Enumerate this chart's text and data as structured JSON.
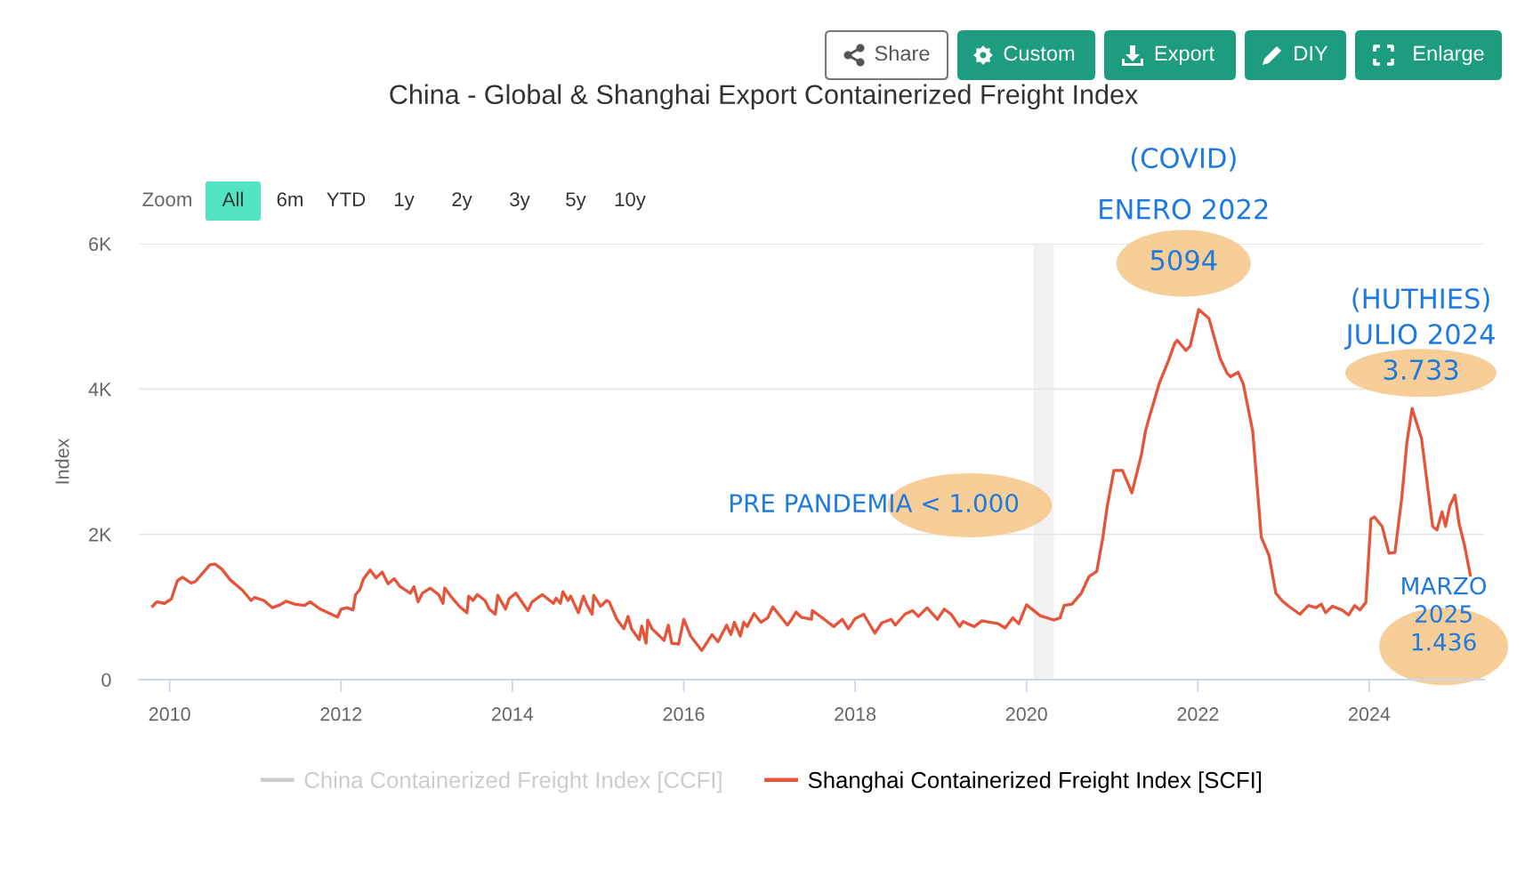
{
  "chart_data": {
    "type": "line",
    "title": "China - Global & Shanghai Export Containerized Freight Index",
    "ylabel": "Index",
    "x": [
      2009.8,
      2009.85,
      2009.94,
      2010.02,
      2010.09,
      2010.15,
      2010.25,
      2010.3,
      2010.47,
      2010.53,
      2010.61,
      2010.71,
      2010.85,
      2010.95,
      2010.99,
      2011.1,
      2011.2,
      2011.29,
      2011.36,
      2011.46,
      2011.57,
      2011.64,
      2011.76,
      2011.96,
      2012.0,
      2012.07,
      2012.14,
      2012.17,
      2012.22,
      2012.26,
      2012.34,
      2012.41,
      2012.48,
      2012.55,
      2012.62,
      2012.69,
      2012.81,
      2012.85,
      2012.9,
      2012.95,
      2013.04,
      2013.14,
      2013.19,
      2013.21,
      2013.28,
      2013.38,
      2013.47,
      2013.49,
      2013.54,
      2013.59,
      2013.68,
      2013.73,
      2013.8,
      2013.83,
      2013.92,
      2013.96,
      2014.04,
      2014.18,
      2014.23,
      2014.35,
      2014.48,
      2014.51,
      2014.56,
      2014.59,
      2014.65,
      2014.68,
      2014.77,
      2014.83,
      2014.87,
      2014.93,
      2014.95,
      2015.03,
      2015.1,
      2015.13,
      2015.22,
      2015.3,
      2015.35,
      2015.39,
      2015.48,
      2015.51,
      2015.56,
      2015.58,
      2015.63,
      2015.77,
      2015.82,
      2015.86,
      2015.94,
      2016.0,
      2016.08,
      2016.21,
      2016.27,
      2016.33,
      2016.4,
      2016.5,
      2016.55,
      2016.59,
      2016.66,
      2016.7,
      2016.74,
      2016.82,
      2016.9,
      2016.98,
      2017.04,
      2017.21,
      2017.26,
      2017.31,
      2017.37,
      2017.49,
      2017.5,
      2017.64,
      2017.75,
      2017.85,
      2017.92,
      2018.0,
      2018.1,
      2018.23,
      2018.31,
      2018.42,
      2018.47,
      2018.58,
      2018.67,
      2018.74,
      2018.84,
      2018.96,
      2019.04,
      2019.12,
      2019.22,
      2019.26,
      2019.39,
      2019.48,
      2019.67,
      2019.75,
      2019.84,
      2019.91,
      2020.0,
      2020.16,
      2020.32,
      2020.39,
      2020.44,
      2020.53,
      2020.64,
      2020.73,
      2020.82,
      2020.89,
      2020.94,
      2021.02,
      2021.12,
      2021.23,
      2021.34,
      2021.39,
      2021.46,
      2021.55,
      2021.66,
      2021.73,
      2021.76,
      2021.86,
      2021.91,
      2022.01,
      2022.13,
      2022.26,
      2022.34,
      2022.38,
      2022.47,
      2022.53,
      2022.64,
      2022.74,
      2022.83,
      2022.91,
      2022.98,
      2023.06,
      2023.19,
      2023.29,
      2023.38,
      2023.44,
      2023.49,
      2023.57,
      2023.68,
      2023.76,
      2023.83,
      2023.89,
      2023.96,
      2024.02,
      2024.06,
      2024.15,
      2024.23,
      2024.3,
      2024.38,
      2024.44,
      2024.5,
      2024.61,
      2024.74,
      2024.79,
      2024.85,
      2024.89,
      2024.94,
      2025.0,
      2025.05,
      2025.11,
      2025.18
    ],
    "series": [
      {
        "name": "China Containerized Freight Index [CCFI]",
        "color": "#cccccc",
        "values": [
          null,
          null,
          null,
          null,
          null,
          null,
          null,
          null,
          null,
          null,
          null,
          null,
          null,
          null,
          null,
          null,
          null,
          null,
          null,
          null,
          null,
          null,
          null,
          null,
          null,
          null,
          null,
          null,
          null,
          null,
          null,
          null,
          null,
          null,
          null,
          null,
          null,
          null,
          null,
          null,
          null,
          null,
          null,
          null,
          null,
          null,
          null,
          null,
          null,
          null,
          null,
          null,
          null,
          null,
          null,
          null,
          null,
          null,
          null,
          null,
          null,
          null,
          null,
          null,
          null,
          null,
          null,
          null,
          null,
          null,
          null,
          null,
          null,
          null,
          null,
          null,
          null,
          null,
          null,
          null,
          null,
          null,
          null,
          null,
          null,
          null,
          null,
          null,
          null,
          null,
          null,
          null,
          null,
          null,
          null,
          null,
          null,
          null,
          null,
          null,
          null,
          null,
          null,
          null,
          null,
          null,
          null,
          null,
          null,
          null,
          null,
          null,
          null,
          null,
          null,
          null,
          null,
          null,
          null,
          null,
          null,
          null,
          null,
          null,
          null,
          null,
          null,
          null,
          null,
          null,
          null,
          null,
          null,
          null,
          null,
          null,
          null,
          null,
          null,
          null,
          null,
          null,
          null,
          null,
          null,
          null,
          null,
          null,
          null,
          null,
          null,
          null,
          null,
          null,
          null,
          null,
          null,
          null,
          null,
          null,
          null,
          null,
          null,
          null,
          null,
          null,
          null,
          null,
          null,
          null,
          null,
          null,
          null,
          null,
          null,
          null,
          null,
          null,
          null,
          null,
          null,
          null,
          null,
          null,
          null,
          null,
          null,
          null,
          null,
          null,
          null,
          null,
          null,
          null,
          null,
          null,
          null,
          null,
          null
        ]
      },
      {
        "name": "Shanghai Containerized Freight Index [SCFI]",
        "color": "#e4553b",
        "values": [
          1010,
          1070,
          1050,
          1110,
          1360,
          1410,
          1330,
          1350,
          1580,
          1590,
          1520,
          1370,
          1230,
          1090,
          1130,
          1090,
          990,
          1030,
          1080,
          1040,
          1020,
          1070,
          970,
          860,
          970,
          990,
          960,
          1170,
          1240,
          1380,
          1510,
          1400,
          1480,
          1320,
          1390,
          1280,
          1190,
          1280,
          1070,
          1190,
          1260,
          1170,
          1050,
          1260,
          1150,
          1010,
          920,
          1150,
          1090,
          1170,
          1090,
          970,
          900,
          1160,
          970,
          1110,
          1190,
          950,
          1070,
          1170,
          1050,
          1120,
          1050,
          1210,
          1090,
          1150,
          920,
          1150,
          1030,
          900,
          1160,
          1010,
          1090,
          1070,
          830,
          700,
          870,
          700,
          550,
          740,
          500,
          820,
          700,
          540,
          750,
          500,
          490,
          830,
          600,
          400,
          510,
          620,
          520,
          750,
          620,
          790,
          600,
          790,
          730,
          910,
          790,
          850,
          1000,
          750,
          830,
          930,
          860,
          830,
          950,
          830,
          730,
          830,
          700,
          840,
          900,
          640,
          780,
          830,
          750,
          900,
          950,
          870,
          990,
          830,
          970,
          900,
          730,
          800,
          730,
          810,
          770,
          710,
          850,
          770,
          1030,
          880,
          820,
          850,
          1020,
          1040,
          1190,
          1420,
          1490,
          1950,
          2370,
          2880,
          2880,
          2570,
          3090,
          3430,
          3720,
          4080,
          4400,
          4630,
          4670,
          4530,
          4590,
          5094,
          4970,
          4420,
          4220,
          4170,
          4230,
          4070,
          3420,
          1960,
          1710,
          1190,
          1090,
          1010,
          900,
          1020,
          990,
          1040,
          920,
          1010,
          960,
          890,
          1020,
          960,
          1060,
          2210,
          2240,
          2110,
          1740,
          1750,
          2510,
          3270,
          3733,
          3320,
          2110,
          2060,
          2310,
          2110,
          2390,
          2540,
          2140,
          1860,
          1436
        ]
      }
    ],
    "xlim": [
      2009.64,
      2025.34
    ],
    "xticks": [
      2010,
      2012,
      2014,
      2016,
      2018,
      2020,
      2022,
      2024
    ],
    "ylim": [
      0,
      6000
    ],
    "yticks": [
      0,
      {
        "value": 2000,
        "label": "2K"
      },
      {
        "value": 4000,
        "label": "4K"
      },
      {
        "value": 6000,
        "label": "6K"
      }
    ],
    "bands": [
      {
        "axis": "x",
        "from": 2020.08,
        "to": 2020.32,
        "color": "#f2f2f2"
      }
    ],
    "grid": "y",
    "legend": "bottom",
    "annotations": [
      {
        "text": "(COVID)\nENERO 2022\n5094",
        "x": 2022.01,
        "y": 5094
      },
      {
        "text": "(HUTHIES)\nJULIO 2024\n3.733",
        "x": 2024.5,
        "y": 3733
      },
      {
        "text": "MARZO\n2025\n1.436",
        "x": 2025.18,
        "y": 1436
      },
      "Share",
      "Custom",
      "Export",
      "DIY",
      "Enlarge",
      "Zoom",
      "All",
      "6m",
      "YTD",
      "1y",
      "2y",
      "3y",
      "5y",
      "10y",
      "PRE PANDEMIA < 1.000"
    ]
  }
}
